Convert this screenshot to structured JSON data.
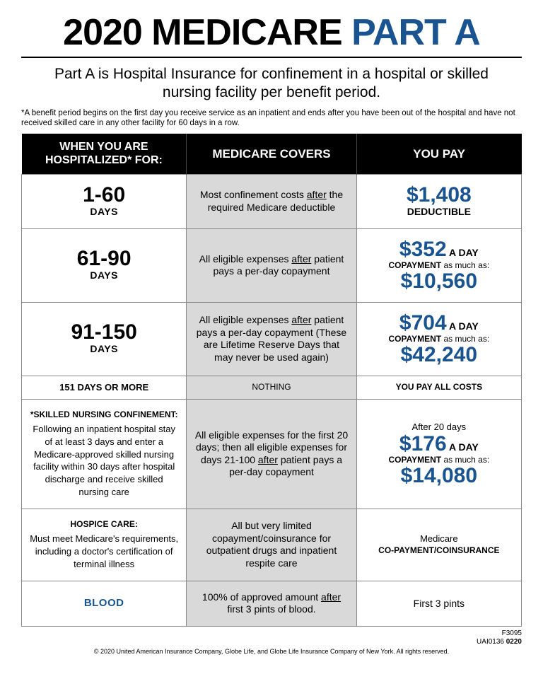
{
  "colors": {
    "accent": "#1a5490",
    "header_bg": "#000000",
    "header_fg": "#ffffff",
    "shade": "#d9d9d9",
    "border": "#888888"
  },
  "title_a": "2020 MEDICARE ",
  "title_b": "PART A",
  "subtitle": "Part A is Hospital Insurance for confinement in a hospital or skilled nursing facility per benefit period.",
  "footnote": "*A benefit period begins on the first day you receive service as an inpatient and ends after you have been out of the hospital and have not received skilled care in any other facility for 60 days in a row.",
  "headers": {
    "a": "WHEN YOU ARE HOSPITALIZED* FOR:",
    "b": "MEDICARE COVERS",
    "c": "YOU PAY"
  },
  "row1": {
    "range": "1-60",
    "days": "DAYS",
    "covers_a": "Most confinement costs ",
    "covers_u": "after",
    "covers_b": " the required Medicare deductible",
    "pay_amount": "$1,408",
    "pay_label": "DEDUCTIBLE"
  },
  "row2": {
    "range": "61-90",
    "days": "DAYS",
    "covers_a": "All eligible expenses ",
    "covers_u": "after",
    "covers_b": " patient pays a per-day copayment",
    "pay_amount": "$352",
    "aday": " A DAY",
    "copay_label": "COPAYMENT",
    "copay_tail": " as much as:",
    "pay_total": "$10,560"
  },
  "row3": {
    "range": "91-150",
    "days": "DAYS",
    "covers_a": "All eligible expenses ",
    "covers_u": "after",
    "covers_b": " patient pays a per-day copayment (These are Lifetime Reserve Days that may never be used again)",
    "pay_amount": "$704",
    "aday": " A DAY",
    "copay_label": "COPAYMENT",
    "copay_tail": " as much as:",
    "pay_total": "$42,240"
  },
  "row4": {
    "a": "151 DAYS OR MORE",
    "b": "NOTHING",
    "c": "YOU PAY ALL COSTS"
  },
  "row5": {
    "title": "*SKILLED NURSING CONFINEMENT:",
    "body": "Following an inpatient hospital stay of at least 3 days and enter a Medicare-approved skilled nursing facility within 30 days after hospital discharge and receive skilled nursing care",
    "covers_a": "All eligible expenses for the first 20 days; then all eligible expenses for days 21-100 ",
    "covers_u": "after",
    "covers_b": " patient pays a per-day copayment",
    "after20": "After 20 days",
    "pay_amount": "$176",
    "aday": " A DAY",
    "copay_label": "COPAYMENT",
    "copay_tail": " as much as:",
    "pay_total": "$14,080"
  },
  "row6": {
    "title": "HOSPICE CARE:",
    "body": "Must meet Medicare's requirements, including a doctor's certification of terminal illness",
    "covers": "All but very limited copayment/coinsurance for outpatient drugs and inpatient respite care",
    "pay_a": "Medicare",
    "pay_b": "CO-PAYMENT/COINSURANCE"
  },
  "row7": {
    "title": "BLOOD",
    "covers_a": "100% of approved amount ",
    "covers_u": "after",
    "covers_b": " first 3 pints of blood.",
    "pay": "First 3 pints"
  },
  "codes": {
    "a": "F3095",
    "b": "UAI0136 ",
    "c": "0220"
  },
  "copyright": "© 2020 United American Insurance Company, Globe Life, and Globe Life Insurance Company of New York. All rights reserved."
}
